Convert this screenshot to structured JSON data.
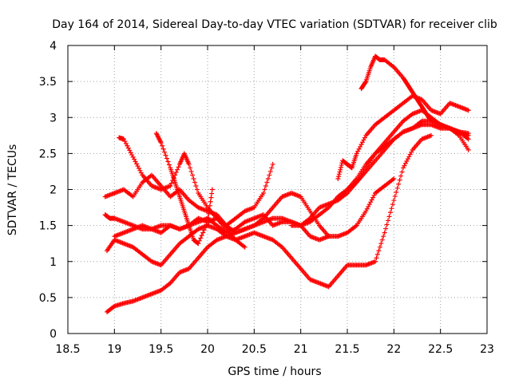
{
  "chart_data": {
    "type": "scatter",
    "title": "Day 164 of 2014, Sidereal Day-to-day VTEC variation (SDTVAR) for receiver clib",
    "xlabel": "GPS time / hours",
    "ylabel": "SDTVAR / TECUs",
    "xlim": [
      18.5,
      23
    ],
    "ylim": [
      0,
      4
    ],
    "xticks": [
      "18.5",
      "19",
      "19.5",
      "20",
      "20.5",
      "21",
      "21.5",
      "22",
      "22.5",
      "23"
    ],
    "yticks": [
      "0",
      "0.5",
      "1",
      "1.5",
      "2",
      "2.5",
      "3",
      "3.5",
      "4"
    ],
    "grid": true,
    "marker": "+",
    "color": "#ff0000",
    "series": [
      {
        "x": [
          18.9,
          19.0,
          19.1,
          19.2,
          19.3,
          19.4,
          19.5,
          19.6,
          19.7,
          19.8,
          19.9,
          20.0,
          20.1,
          20.2,
          20.3,
          20.4,
          20.5,
          20.6,
          20.7
        ],
        "y": [
          1.9,
          1.95,
          2.0,
          1.9,
          2.1,
          2.2,
          2.05,
          1.9,
          2.0,
          1.85,
          1.75,
          1.7,
          1.65,
          1.5,
          1.6,
          1.7,
          1.75,
          1.95,
          2.35
        ]
      },
      {
        "x": [
          19.05,
          19.1,
          19.2,
          19.3,
          19.4,
          19.5,
          19.6,
          19.7,
          19.75,
          19.8,
          19.9,
          20.0,
          20.1,
          20.2,
          20.3,
          20.4
        ],
        "y": [
          2.72,
          2.7,
          2.45,
          2.2,
          2.05,
          2.0,
          2.05,
          2.35,
          2.5,
          2.35,
          1.95,
          1.75,
          1.6,
          1.45,
          1.3,
          1.2
        ]
      },
      {
        "x": [
          19.45,
          19.5,
          19.6,
          19.65,
          19.7,
          19.75,
          19.8,
          19.85,
          19.9,
          20.0,
          20.05
        ],
        "y": [
          2.78,
          2.65,
          2.3,
          2.1,
          1.9,
          1.7,
          1.5,
          1.3,
          1.25,
          1.55,
          2.0
        ]
      },
      {
        "x": [
          18.9,
          18.95,
          19.0,
          19.1,
          19.2,
          19.3,
          19.4,
          19.5,
          19.6,
          19.7,
          19.8,
          19.9,
          20.0,
          20.1,
          20.2,
          20.3,
          20.4,
          20.5,
          20.6,
          20.7,
          20.8,
          20.9,
          21.0,
          21.1,
          21.2,
          21.3,
          21.4,
          21.5,
          21.6,
          21.7,
          21.8,
          21.9,
          22.0,
          22.1,
          22.2,
          22.3,
          22.4,
          22.5,
          22.6,
          22.7,
          22.8
        ],
        "y": [
          1.65,
          1.6,
          1.6,
          1.55,
          1.5,
          1.45,
          1.45,
          1.5,
          1.5,
          1.45,
          1.5,
          1.55,
          1.6,
          1.5,
          1.4,
          1.45,
          1.55,
          1.6,
          1.65,
          1.5,
          1.55,
          1.55,
          1.5,
          1.55,
          1.65,
          1.75,
          1.9,
          2.0,
          2.15,
          2.35,
          2.5,
          2.6,
          2.7,
          2.8,
          2.85,
          2.9,
          2.9,
          2.85,
          2.85,
          2.8,
          2.75
        ]
      },
      {
        "x": [
          18.92,
          19.0,
          19.1,
          19.2,
          19.3,
          19.4,
          19.5,
          19.6,
          19.7,
          19.8,
          19.9,
          20.0,
          20.1,
          20.2,
          20.3,
          20.4,
          20.5,
          20.6,
          20.7,
          20.8,
          20.9,
          21.0,
          21.1,
          21.2,
          21.3
        ],
        "y": [
          0.3,
          0.38,
          0.42,
          0.45,
          0.5,
          0.55,
          0.6,
          0.7,
          0.85,
          0.9,
          1.05,
          1.2,
          1.3,
          1.35,
          1.4,
          1.45,
          1.5,
          1.55,
          1.6,
          1.6,
          1.55,
          1.5,
          1.35,
          1.3,
          1.35
        ]
      },
      {
        "x": [
          18.92,
          19.0,
          19.1,
          19.2,
          19.3,
          19.4,
          19.5,
          19.6,
          19.7,
          19.8,
          19.9,
          20.0,
          20.1,
          20.2,
          20.3,
          20.4,
          20.5,
          20.6,
          20.7,
          20.8,
          20.9,
          21.0,
          21.1,
          21.2,
          21.3,
          21.4,
          21.5,
          21.6,
          21.7,
          21.8,
          21.9,
          22.0,
          22.1,
          22.2,
          22.3,
          22.4
        ],
        "y": [
          1.15,
          1.3,
          1.25,
          1.2,
          1.1,
          1.0,
          0.95,
          1.1,
          1.25,
          1.35,
          1.45,
          1.5,
          1.45,
          1.35,
          1.3,
          1.35,
          1.4,
          1.35,
          1.3,
          1.2,
          1.05,
          0.9,
          0.75,
          0.7,
          0.65,
          0.8,
          0.95,
          0.95,
          0.95,
          1.0,
          1.4,
          1.85,
          2.3,
          2.55,
          2.7,
          2.75
        ]
      },
      {
        "x": [
          19.0,
          19.1,
          19.2,
          19.3,
          19.4,
          19.5,
          19.6,
          19.7,
          19.8,
          19.9,
          20.0,
          20.1,
          20.2,
          20.3,
          20.4,
          20.5,
          20.6,
          20.7,
          20.8,
          20.9,
          21.0,
          21.1,
          21.2,
          21.3,
          21.4,
          21.5,
          21.6,
          21.7,
          21.8,
          21.9,
          22.0
        ],
        "y": [
          1.35,
          1.4,
          1.45,
          1.5,
          1.45,
          1.4,
          1.5,
          1.45,
          1.5,
          1.6,
          1.55,
          1.6,
          1.5,
          1.4,
          1.45,
          1.5,
          1.6,
          1.75,
          1.9,
          1.95,
          1.9,
          1.7,
          1.5,
          1.35,
          1.35,
          1.4,
          1.5,
          1.7,
          1.95,
          2.05,
          2.15
        ]
      },
      {
        "x": [
          21.4,
          21.45,
          21.5,
          21.55,
          21.6,
          21.7,
          21.8,
          21.9,
          22.0,
          22.1,
          22.2,
          22.3,
          22.4,
          22.5,
          22.6,
          22.7,
          22.8
        ],
        "y": [
          2.15,
          2.4,
          2.35,
          2.3,
          2.5,
          2.75,
          2.9,
          3.0,
          3.1,
          3.2,
          3.3,
          3.25,
          3.1,
          3.05,
          3.2,
          3.15,
          3.1
        ]
      },
      {
        "x": [
          21.65,
          21.7,
          21.75,
          21.8,
          21.85,
          21.9,
          22.0,
          22.1,
          22.15,
          22.2,
          22.25,
          22.3,
          22.35,
          22.4,
          22.5,
          22.6,
          22.7,
          22.8
        ],
        "y": [
          3.4,
          3.5,
          3.7,
          3.85,
          3.8,
          3.8,
          3.7,
          3.55,
          3.45,
          3.35,
          3.25,
          3.15,
          3.05,
          2.95,
          2.9,
          2.85,
          2.8,
          2.78
        ]
      },
      {
        "x": [
          20.9,
          21.0,
          21.1,
          21.2,
          21.3,
          21.4,
          21.5,
          21.6,
          21.7,
          21.8,
          21.9,
          22.0,
          22.1,
          22.2,
          22.3,
          22.4,
          22.5,
          22.6,
          22.7,
          22.8
        ],
        "y": [
          1.5,
          1.5,
          1.6,
          1.75,
          1.8,
          1.85,
          1.95,
          2.1,
          2.25,
          2.4,
          2.55,
          2.7,
          2.8,
          2.85,
          2.95,
          2.95,
          2.9,
          2.85,
          2.75,
          2.55
        ]
      },
      {
        "x": [
          21.4,
          21.5,
          21.6,
          21.7,
          21.8,
          21.9,
          22.0,
          22.1,
          22.2,
          22.3,
          22.4,
          22.5,
          22.6,
          22.7,
          22.8
        ],
        "y": [
          1.9,
          2.0,
          2.1,
          2.3,
          2.5,
          2.65,
          2.8,
          2.95,
          3.05,
          3.1,
          3.0,
          2.9,
          2.85,
          2.8,
          2.7
        ]
      }
    ]
  }
}
